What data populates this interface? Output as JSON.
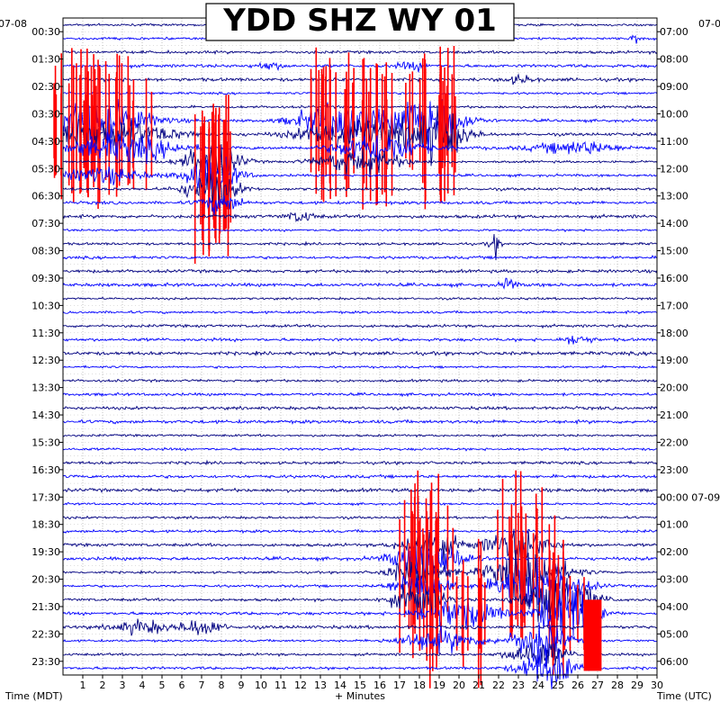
{
  "chart_data": {
    "type": "line",
    "title": "YDD SHZ WY 01",
    "xlabel": "+ Minutes",
    "left_axis_label": "Time (MDT)",
    "right_axis_label": "Time (UTC)",
    "start_date_left": "07-08",
    "start_date_right": "07-08",
    "date_change_label": "07-09",
    "date_change_at": "00:00",
    "x_ticks": [
      1,
      2,
      3,
      4,
      5,
      6,
      7,
      8,
      9,
      10,
      11,
      12,
      13,
      14,
      15,
      16,
      17,
      18,
      19,
      20,
      21,
      22,
      23,
      24,
      25,
      26,
      27,
      28,
      29,
      30
    ],
    "xlim": [
      0,
      30
    ],
    "left_tick_labels": [
      "00:30",
      "01:30",
      "02:30",
      "03:30",
      "04:30",
      "05:30",
      "06:30",
      "07:30",
      "08:30",
      "09:30",
      "10:30",
      "11:30",
      "12:30",
      "13:30",
      "14:30",
      "15:30",
      "16:30",
      "17:30",
      "18:30",
      "19:30",
      "20:30",
      "21:30",
      "22:30",
      "23:30"
    ],
    "right_tick_labels": [
      "07:00",
      "08:00",
      "09:00",
      "10:00",
      "11:00",
      "12:00",
      "13:00",
      "14:00",
      "15:00",
      "16:00",
      "17:00",
      "18:00",
      "19:00",
      "20:00",
      "21:00",
      "22:00",
      "23:00",
      "00:00",
      "01:00",
      "02:00",
      "03:00",
      "04:00",
      "05:00",
      "06:00"
    ],
    "trace_colors": [
      "#000080",
      "#0000ff"
    ],
    "clip_color": "#ff0000",
    "grid": true
  }
}
